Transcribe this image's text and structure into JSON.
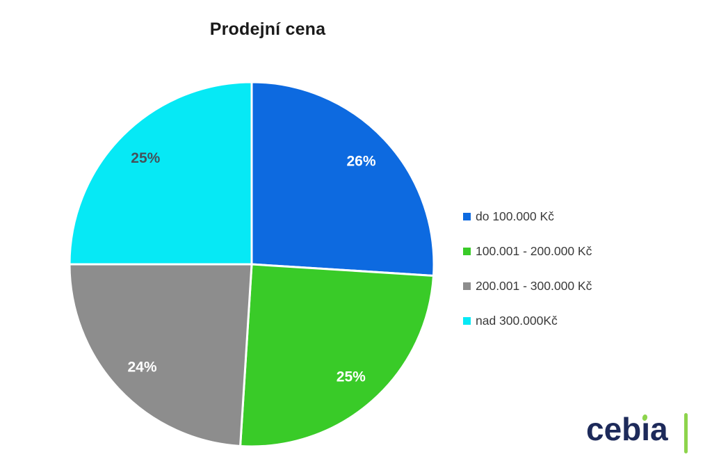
{
  "chart_data": {
    "type": "pie",
    "title": "Prodejní cena",
    "direction": "clockwise",
    "start_angle_deg": 0,
    "legend_position": "right",
    "background": "#ffffff",
    "separator_color": "#ffffff",
    "categories": [
      "do 100.000 Kč",
      "100.001 - 200.000 Kč",
      "200.001 - 300.000 Kč",
      "nad 300.000Kč"
    ],
    "values": [
      26,
      25,
      24,
      25
    ],
    "slices": [
      {
        "label": "do 100.000 Kč",
        "value": 26,
        "pct_label": "26%",
        "color": "#0d6ae0",
        "pct_color": "#ffffff"
      },
      {
        "label": "100.001 - 200.000 Kč",
        "value": 25,
        "pct_label": "25%",
        "color": "#39cb28",
        "pct_color": "#ffffff"
      },
      {
        "label": "200.001 - 300.000 Kč",
        "value": 24,
        "pct_label": "24%",
        "color": "#8d8d8d",
        "pct_color": "#ffffff"
      },
      {
        "label": "nad 300.000Kč",
        "value": 25,
        "pct_label": "25%",
        "color": "#06e9f5",
        "pct_color": "#44525a"
      }
    ]
  },
  "logo": {
    "text": "cebia",
    "text_color": "#1d2a5a",
    "accent_color": "#8dd44c"
  }
}
